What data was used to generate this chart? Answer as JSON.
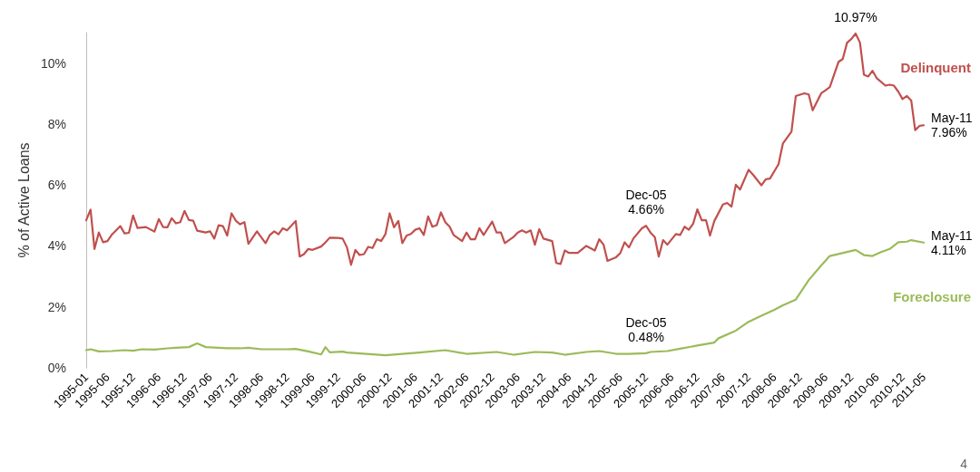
{
  "chart_data": {
    "type": "line",
    "ylabel": "% of Active Loans",
    "marker": "none",
    "line_style": "solid",
    "xlim": [
      "1995-01",
      "2011-05"
    ],
    "xticks": [
      "1995-01",
      "1995-06",
      "1995-12",
      "1996-06",
      "1996-12",
      "1997-06",
      "1997-12",
      "1998-06",
      "1998-12",
      "1999-06",
      "1999-12",
      "2000-06",
      "2000-12",
      "2001-06",
      "2001-12",
      "2002-06",
      "2002-12",
      "2003-06",
      "2003-12",
      "2004-06",
      "2004-12",
      "2005-06",
      "2005-12",
      "2006-06",
      "2006-12",
      "2007-06",
      "2007-12",
      "2008-06",
      "2008-12",
      "2009-06",
      "2009-12",
      "2010-06",
      "2010-12",
      "2011-05"
    ],
    "ylim": [
      0,
      11
    ],
    "yticks": [
      {
        "value": 0,
        "label": "0%"
      },
      {
        "value": 2,
        "label": "2%"
      },
      {
        "value": 4,
        "label": "4%"
      },
      {
        "value": 6,
        "label": "6%"
      },
      {
        "value": 8,
        "label": "8%"
      },
      {
        "value": 10,
        "label": "10%"
      }
    ],
    "series": [
      {
        "name": "Delinquent",
        "color": "#c0504d",
        "x": [
          "1995-01",
          "1995-02",
          "1995-03",
          "1995-04",
          "1995-05",
          "1995-06",
          "1995-07",
          "1995-09",
          "1995-10",
          "1995-11",
          "1995-12",
          "1996-01",
          "1996-03",
          "1996-05",
          "1996-06",
          "1996-07",
          "1996-08",
          "1996-09",
          "1996-10",
          "1996-11",
          "1996-12",
          "1997-01",
          "1997-02",
          "1997-03",
          "1997-05",
          "1997-06",
          "1997-07",
          "1997-08",
          "1997-09",
          "1997-10",
          "1997-11",
          "1997-12",
          "1998-01",
          "1998-02",
          "1998-03",
          "1998-05",
          "1998-07",
          "1998-08",
          "1998-09",
          "1998-10",
          "1998-11",
          "1998-12",
          "1999-02",
          "1999-03",
          "1999-04",
          "1999-05",
          "1999-06",
          "1999-08",
          "1999-09",
          "1999-10",
          "1999-12",
          "2000-01",
          "2000-02",
          "2000-03",
          "2000-04",
          "2000-05",
          "2000-06",
          "2000-07",
          "2000-08",
          "2000-09",
          "2000-10",
          "2000-11",
          "2000-12",
          "2001-01",
          "2001-02",
          "2001-03",
          "2001-04",
          "2001-05",
          "2001-06",
          "2001-07",
          "2001-08",
          "2001-09",
          "2001-10",
          "2001-11",
          "2001-12",
          "2002-01",
          "2002-02",
          "2002-03",
          "2002-05",
          "2002-06",
          "2002-07",
          "2002-08",
          "2002-09",
          "2002-10",
          "2002-12",
          "2003-01",
          "2003-02",
          "2003-03",
          "2003-05",
          "2003-06",
          "2003-07",
          "2003-08",
          "2003-09",
          "2003-10",
          "2003-11",
          "2003-12",
          "2004-02",
          "2004-03",
          "2004-04",
          "2004-05",
          "2004-06",
          "2004-08",
          "2004-10",
          "2004-12",
          "2005-01",
          "2005-02",
          "2005-03",
          "2005-05",
          "2005-06",
          "2005-07",
          "2005-08",
          "2005-09",
          "2005-11",
          "2005-12",
          "2006-01",
          "2006-02",
          "2006-03",
          "2006-04",
          "2006-05",
          "2006-07",
          "2006-08",
          "2006-09",
          "2006-10",
          "2006-11",
          "2006-12",
          "2007-01",
          "2007-02",
          "2007-03",
          "2007-04",
          "2007-06",
          "2007-07",
          "2007-08",
          "2007-09",
          "2007-10",
          "2007-12",
          "2008-01",
          "2008-03",
          "2008-04",
          "2008-05",
          "2008-07",
          "2008-08",
          "2008-10",
          "2008-11",
          "2009-01",
          "2009-02",
          "2009-03",
          "2009-05",
          "2009-06",
          "2009-07",
          "2009-09",
          "2009-10",
          "2009-11",
          "2009-12",
          "2010-01",
          "2010-02",
          "2010-03",
          "2010-04",
          "2010-05",
          "2010-06",
          "2010-08",
          "2010-09",
          "2010-10",
          "2010-11",
          "2010-12",
          "2011-01",
          "2011-02",
          "2011-03",
          "2011-04",
          "2011-05"
        ],
        "values": [
          4.84,
          5.19,
          3.9,
          4.44,
          4.12,
          4.16,
          4.36,
          4.65,
          4.41,
          4.43,
          5.0,
          4.59,
          4.62,
          4.47,
          4.88,
          4.62,
          4.61,
          4.91,
          4.74,
          4.78,
          5.15,
          4.85,
          4.83,
          4.5,
          4.44,
          4.48,
          4.24,
          4.68,
          4.65,
          4.34,
          5.07,
          4.83,
          4.71,
          4.78,
          4.07,
          4.48,
          4.09,
          4.36,
          4.48,
          4.38,
          4.58,
          4.51,
          4.82,
          3.65,
          3.73,
          3.9,
          3.87,
          3.98,
          4.12,
          4.27,
          4.26,
          4.24,
          3.95,
          3.38,
          3.87,
          3.7,
          3.73,
          3.97,
          3.93,
          4.22,
          4.16,
          4.39,
          5.07,
          4.61,
          4.82,
          4.09,
          4.34,
          4.39,
          4.53,
          4.58,
          4.36,
          4.97,
          4.63,
          4.68,
          5.1,
          4.78,
          4.63,
          4.36,
          4.16,
          4.44,
          4.22,
          4.22,
          4.58,
          4.36,
          4.8,
          4.44,
          4.44,
          4.09,
          4.29,
          4.44,
          4.51,
          4.44,
          4.51,
          4.04,
          4.55,
          4.24,
          4.16,
          3.44,
          3.41,
          3.85,
          3.77,
          3.77,
          4.0,
          3.85,
          4.22,
          4.04,
          3.51,
          3.63,
          3.77,
          4.12,
          3.95,
          4.24,
          4.58,
          4.66,
          4.44,
          4.29,
          3.65,
          4.19,
          4.04,
          4.39,
          4.36,
          4.63,
          4.53,
          4.73,
          5.2,
          4.84,
          4.84,
          4.34,
          4.82,
          5.36,
          5.41,
          5.29,
          6.01,
          5.85,
          6.5,
          6.34,
          5.99,
          6.19,
          6.21,
          6.68,
          7.36,
          7.75,
          8.92,
          9.01,
          8.97,
          8.45,
          9.01,
          9.11,
          9.21,
          10.04,
          10.13,
          10.67,
          10.79,
          10.97,
          10.67,
          9.62,
          9.56,
          9.75,
          9.5,
          9.26,
          9.29,
          9.26,
          9.06,
          8.82,
          8.92,
          8.77,
          7.8,
          7.94,
          7.96
        ]
      },
      {
        "name": "Foreclosure",
        "color": "#9bbb59",
        "x": [
          "1995-01",
          "1995-02",
          "1995-04",
          "1995-07",
          "1995-10",
          "1995-12",
          "1996-02",
          "1996-05",
          "1996-08",
          "1996-10",
          "1997-01",
          "1997-03",
          "1997-05",
          "1997-10",
          "1998-01",
          "1998-03",
          "1998-06",
          "1998-12",
          "1999-02",
          "1999-05",
          "1999-08",
          "1999-09",
          "1999-10",
          "2000-01",
          "2000-02",
          "2000-11",
          "2001-07",
          "2002-01",
          "2002-06",
          "2003-01",
          "2003-05",
          "2003-10",
          "2004-02",
          "2004-05",
          "2004-10",
          "2005-01",
          "2005-05",
          "2005-08",
          "2005-12",
          "2006-01",
          "2006-05",
          "2006-08",
          "2006-12",
          "2007-04",
          "2007-05",
          "2007-09",
          "2007-12",
          "2008-03",
          "2008-06",
          "2008-08",
          "2008-11",
          "2009-02",
          "2009-05",
          "2009-07",
          "2009-11",
          "2010-01",
          "2010-03",
          "2010-05",
          "2010-07",
          "2010-09",
          "2010-11",
          "2011-01",
          "2011-02",
          "2011-05"
        ],
        "values": [
          0.58,
          0.61,
          0.54,
          0.55,
          0.58,
          0.56,
          0.61,
          0.6,
          0.64,
          0.66,
          0.68,
          0.8,
          0.68,
          0.64,
          0.64,
          0.66,
          0.61,
          0.61,
          0.62,
          0.54,
          0.44,
          0.68,
          0.51,
          0.53,
          0.5,
          0.41,
          0.5,
          0.58,
          0.46,
          0.52,
          0.43,
          0.52,
          0.5,
          0.43,
          0.52,
          0.55,
          0.46,
          0.46,
          0.48,
          0.52,
          0.55,
          0.63,
          0.73,
          0.83,
          0.97,
          1.22,
          1.51,
          1.71,
          1.9,
          2.05,
          2.24,
          2.88,
          3.36,
          3.67,
          3.8,
          3.87,
          3.7,
          3.67,
          3.8,
          3.9,
          4.12,
          4.14,
          4.19,
          4.11
        ]
      }
    ],
    "annotations": [
      {
        "text": "Dec-05\n4.66%",
        "x": "2005-12",
        "y": 4.66
      },
      {
        "text": "10.97%",
        "x": "2010-01",
        "y": 10.97
      },
      {
        "text": "May-11\n7.96%",
        "x": "2011-05",
        "y": 7.96
      },
      {
        "text": "May-11\n4.11%",
        "x": "2011-05",
        "y": 4.11
      },
      {
        "text": "Dec-05\n0.48%",
        "x": "2005-12",
        "y": 0.48
      },
      "4"
    ]
  }
}
